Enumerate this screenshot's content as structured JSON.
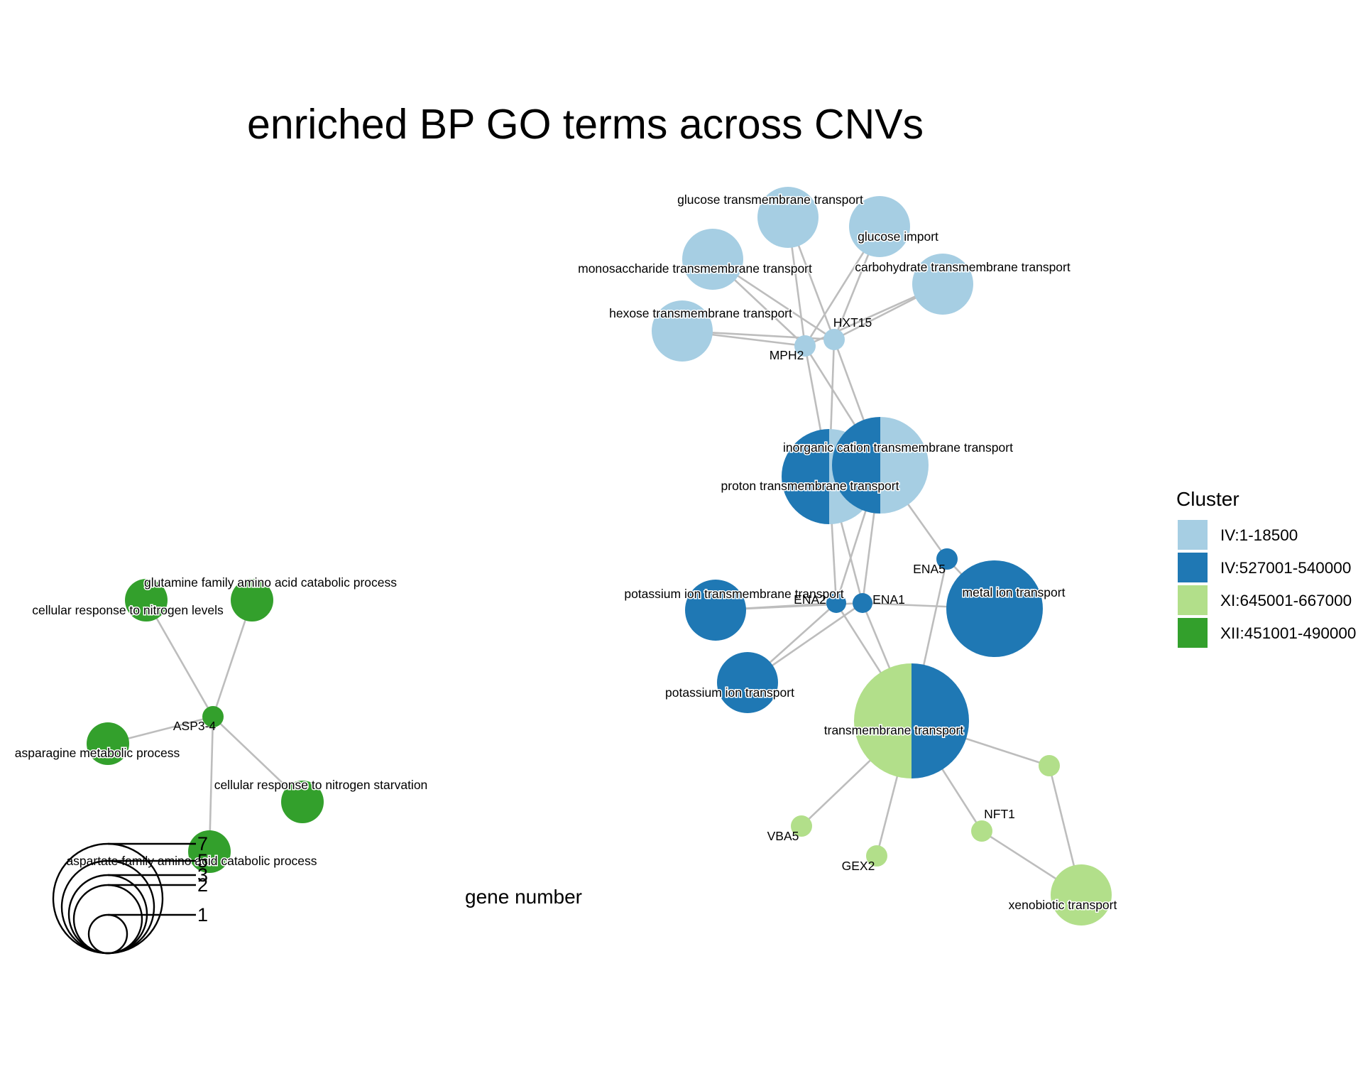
{
  "title": "enriched BP GO terms across CNVs",
  "size_legend": {
    "title": "gene number",
    "values": [
      7,
      5,
      3,
      2,
      1
    ]
  },
  "cluster_legend": {
    "title": "Cluster",
    "items": [
      {
        "label": "IV:1-18500",
        "color": "#a6cee3"
      },
      {
        "label": "IV:527001-540000",
        "color": "#1f78b4"
      },
      {
        "label": "XI:645001-667000",
        "color": "#b2df8a"
      },
      {
        "label": "XII:451001-490000",
        "color": "#33a02c"
      }
    ]
  },
  "edge_color": "#bdbdbd",
  "nodes": [
    {
      "id": "glucose transmembrane transport",
      "type": "term",
      "genes": 5,
      "clusters": [
        "IV:1-18500"
      ]
    },
    {
      "id": "glucose import",
      "type": "term",
      "genes": 5,
      "clusters": [
        "IV:1-18500"
      ]
    },
    {
      "id": "monosaccharide transmembrane transport",
      "type": "term",
      "genes": 5,
      "clusters": [
        "IV:1-18500"
      ]
    },
    {
      "id": "carbohydrate transmembrane transport",
      "type": "term",
      "genes": 5,
      "clusters": [
        "IV:1-18500"
      ]
    },
    {
      "id": "hexose transmembrane transport",
      "type": "term",
      "genes": 5,
      "clusters": [
        "IV:1-18500"
      ]
    },
    {
      "id": "MPH2",
      "type": "gene",
      "clusters": [
        "IV:1-18500"
      ]
    },
    {
      "id": "HXT15",
      "type": "gene",
      "clusters": [
        "IV:1-18500"
      ]
    },
    {
      "id": "proton transmembrane transport",
      "type": "term",
      "genes": 6,
      "clusters": [
        "IV:527001-540000",
        "IV:1-18500"
      ]
    },
    {
      "id": "inorganic cation transmembrane transport",
      "type": "term",
      "genes": 7,
      "clusters": [
        "IV:527001-540000",
        "IV:1-18500"
      ]
    },
    {
      "id": "ENA5",
      "type": "gene",
      "clusters": [
        "IV:527001-540000"
      ]
    },
    {
      "id": "potassium ion transmembrane transport",
      "type": "term",
      "genes": 5,
      "clusters": [
        "IV:527001-540000"
      ]
    },
    {
      "id": "ENA2",
      "type": "gene",
      "clusters": [
        "IV:527001-540000"
      ]
    },
    {
      "id": "ENA1",
      "type": "gene",
      "clusters": [
        "IV:527001-540000"
      ]
    },
    {
      "id": "metal ion transport",
      "type": "term",
      "genes": 7,
      "clusters": [
        "IV:527001-540000"
      ]
    },
    {
      "id": "potassium ion transport",
      "type": "term",
      "genes": 5,
      "clusters": [
        "IV:527001-540000"
      ]
    },
    {
      "id": "transmembrane transport",
      "type": "term",
      "genes": 9,
      "clusters": [
        "XI:645001-667000",
        "IV:527001-540000"
      ]
    },
    {
      "id": "",
      "type": "gene",
      "clusters": [
        "XI:645001-667000"
      ]
    },
    {
      "id": "NFT1",
      "type": "gene",
      "clusters": [
        "XI:645001-667000"
      ]
    },
    {
      "id": "VBA5",
      "type": "gene",
      "clusters": [
        "XI:645001-667000"
      ]
    },
    {
      "id": "GEX2",
      "type": "gene",
      "clusters": [
        "XI:645001-667000"
      ]
    },
    {
      "id": "xenobiotic transport",
      "type": "term",
      "genes": 5,
      "clusters": [
        "XI:645001-667000"
      ]
    },
    {
      "id": "cellular response to nitrogen levels",
      "type": "term",
      "genes": 3,
      "clusters": [
        "XII:451001-490000"
      ]
    },
    {
      "id": "glutamine family amino acid catabolic process",
      "type": "term",
      "genes": 3,
      "clusters": [
        "XII:451001-490000"
      ]
    },
    {
      "id": "ASP3-4",
      "type": "gene",
      "clusters": [
        "XII:451001-490000"
      ]
    },
    {
      "id": "asparagine metabolic process",
      "type": "term",
      "genes": 3,
      "clusters": [
        "XII:451001-490000"
      ]
    },
    {
      "id": "cellular response to nitrogen starvation",
      "type": "term",
      "genes": 3,
      "clusters": [
        "XII:451001-490000"
      ]
    },
    {
      "id": "aspartate family amino acid catabolic process",
      "type": "term",
      "genes": 3,
      "clusters": [
        "XII:451001-490000"
      ]
    }
  ],
  "edges": [
    [
      "glucose transmembrane transport",
      "MPH2"
    ],
    [
      "glucose transmembrane transport",
      "HXT15"
    ],
    [
      "glucose import",
      "MPH2"
    ],
    [
      "glucose import",
      "HXT15"
    ],
    [
      "monosaccharide transmembrane transport",
      "MPH2"
    ],
    [
      "monosaccharide transmembrane transport",
      "HXT15"
    ],
    [
      "carbohydrate transmembrane transport",
      "MPH2"
    ],
    [
      "carbohydrate transmembrane transport",
      "HXT15"
    ],
    [
      "hexose transmembrane transport",
      "MPH2"
    ],
    [
      "hexose transmembrane transport",
      "HXT15"
    ],
    [
      "MPH2",
      "inorganic cation transmembrane transport"
    ],
    [
      "MPH2",
      "proton transmembrane transport"
    ],
    [
      "HXT15",
      "inorganic cation transmembrane transport"
    ],
    [
      "HXT15",
      "proton transmembrane transport"
    ],
    [
      "inorganic cation transmembrane transport",
      "ENA5"
    ],
    [
      "inorganic cation transmembrane transport",
      "ENA2"
    ],
    [
      "inorganic cation transmembrane transport",
      "ENA1"
    ],
    [
      "proton transmembrane transport",
      "ENA2"
    ],
    [
      "proton transmembrane transport",
      "ENA1"
    ],
    [
      "ENA5",
      "metal ion transport"
    ],
    [
      "ENA1",
      "metal ion transport"
    ],
    [
      "ENA2",
      "potassium ion transmembrane transport"
    ],
    [
      "ENA1",
      "potassium ion transmembrane transport"
    ],
    [
      "ENA2",
      "potassium ion transport"
    ],
    [
      "ENA1",
      "potassium ion transport"
    ],
    [
      "ENA5",
      "transmembrane transport"
    ],
    [
      "ENA2",
      "transmembrane transport"
    ],
    [
      "ENA1",
      "transmembrane transport"
    ],
    [
      "transmembrane transport",
      ""
    ],
    [
      "transmembrane transport",
      "NFT1"
    ],
    [
      "transmembrane transport",
      "VBA5"
    ],
    [
      "transmembrane transport",
      "GEX2"
    ],
    [
      "",
      "xenobiotic transport"
    ],
    [
      "NFT1",
      "xenobiotic transport"
    ],
    [
      "ASP3-4",
      "cellular response to nitrogen levels"
    ],
    [
      "ASP3-4",
      "glutamine family amino acid catabolic process"
    ],
    [
      "ASP3-4",
      "asparagine metabolic process"
    ],
    [
      "ASP3-4",
      "cellular response to nitrogen starvation"
    ],
    [
      "ASP3-4",
      "aspartate family amino acid catabolic process"
    ]
  ]
}
